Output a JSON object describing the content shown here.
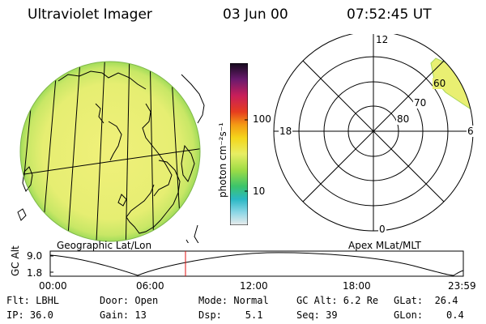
{
  "header": {
    "title": "Ultraviolet Imager",
    "date": "03 Jun 00",
    "time": "07:52:45 UT"
  },
  "colorbar": {
    "unit_label": "photon cm⁻²s⁻¹",
    "tick_high": "100",
    "tick_low": "10"
  },
  "geo_panel": {
    "caption": "Geographic Lat/Lon"
  },
  "polar_panel": {
    "caption": "Apex MLat/MLT",
    "mlt_labels": {
      "top": "12",
      "bottom": "0",
      "left": "18",
      "right": "6"
    },
    "lat_labels": [
      "60",
      "70",
      "80"
    ]
  },
  "altitude_plot": {
    "ylabel": "GC Alt",
    "ytick_high": "9.0",
    "ytick_low": "1.8",
    "xticks": [
      "00:00",
      "06:00",
      "12:00",
      "18:00",
      "23:59"
    ],
    "marker_color": "#e01010"
  },
  "status": {
    "flt": "Flt: LBHL",
    "ip": "IP: 36.0",
    "door": "Door: Open",
    "gain": "Gain: 13",
    "mode": "Mode: Normal",
    "dsp": "Dsp:    5.1",
    "gcalt": "GC Alt: 6.2 Re",
    "seq": "Seq: 39",
    "glat": "GLat:  26.4",
    "glon": "GLon:    0.4"
  },
  "colors": {
    "emission": "#e8ee73",
    "emission_edge": "#b4e15a",
    "colorbar_top": "#1a0a1e"
  }
}
